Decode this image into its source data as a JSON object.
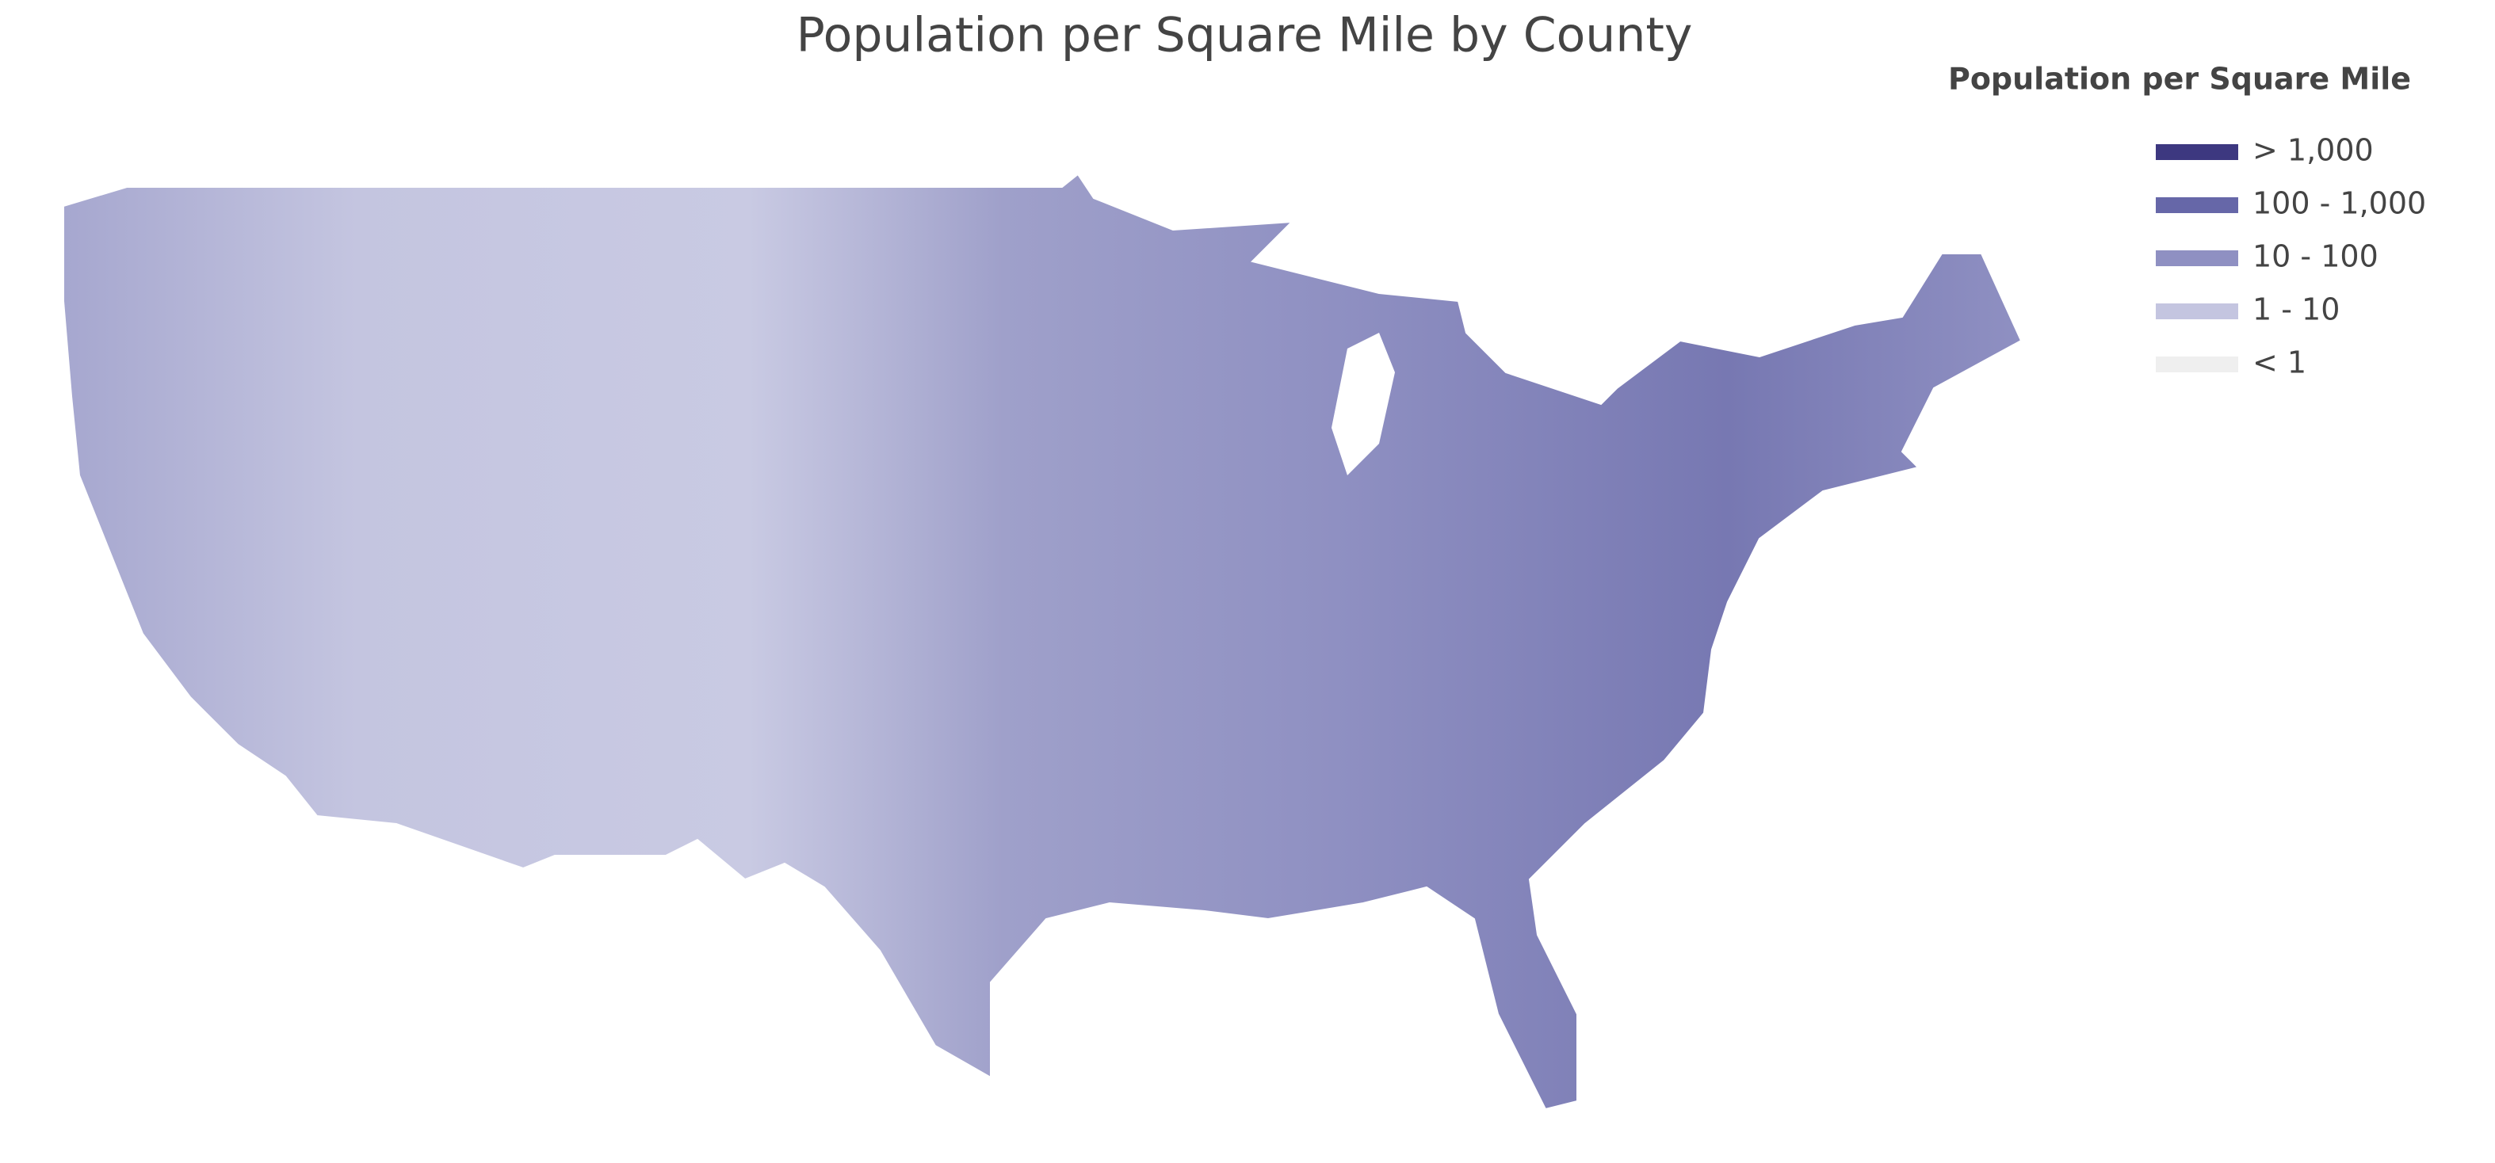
{
  "map": {
    "title": "Population per Square Mile by County",
    "legend": {
      "title": "Population per Square Mile",
      "items": [
        {
          "label": "> 1,000",
          "color": "#3d3880"
        },
        {
          "label": "100 - 1,000",
          "color": "#6667a8"
        },
        {
          "label": "10 - 100",
          "color": "#8f90c2"
        },
        {
          "label": "1 - 10",
          "color": "#c4c5e0"
        },
        {
          "label": "< 1",
          "color": "#efefef"
        }
      ]
    }
  }
}
